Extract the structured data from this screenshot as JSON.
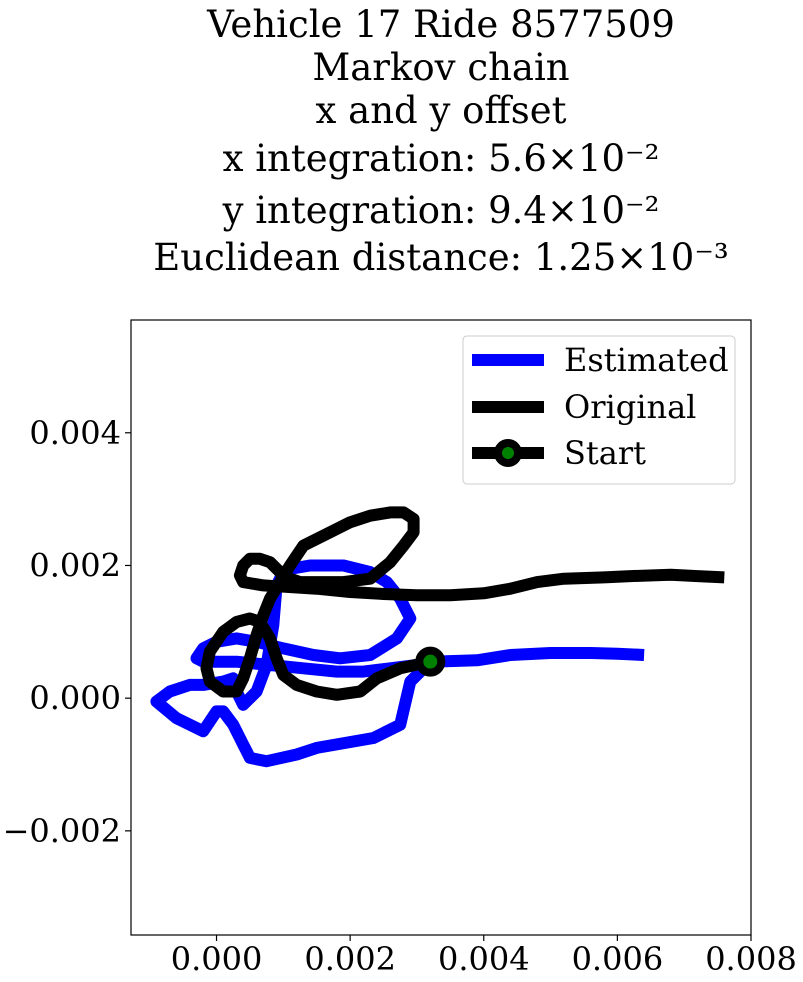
{
  "chart_data": {
    "type": "line",
    "title_lines": [
      "Vehicle 17 Ride 8577509",
      "Markov chain",
      "x and y offset",
      "x integration: 5.6×10⁻²",
      "y integration: 9.4×10⁻²",
      "Euclidean distance: 1.25×10⁻³"
    ],
    "xlabel": "",
    "ylabel": "",
    "xlim": [
      -0.00128,
      0.008
    ],
    "ylim": [
      -0.00357,
      0.0057
    ],
    "x_ticks": [
      0.0,
      0.002,
      0.004,
      0.006,
      0.008
    ],
    "x_tick_labels": [
      "0.000",
      "0.002",
      "0.004",
      "0.006",
      "0.008"
    ],
    "y_ticks": [
      -0.002,
      0.0,
      0.002,
      0.004
    ],
    "y_tick_labels": [
      "−0.002",
      "0.000",
      "0.002",
      "0.004"
    ],
    "grid": false,
    "legend_position": "top-right",
    "series": [
      {
        "name": "Estimated",
        "color": "#0000ff",
        "x": [
          0.0032,
          0.0029,
          0.00275,
          0.00235,
          0.0015,
          0.0012,
          0.00075,
          0.0005,
          0.00045,
          0.0004,
          0.00035,
          0.00025,
          0.0001,
          0.0,
          -0.0002,
          -0.0006,
          -0.0009,
          -0.0007,
          -0.0004,
          -0.0002,
          0.0001,
          0.00025,
          0.0003,
          0.0004,
          0.0006,
          0.00075,
          0.00085,
          0.0009,
          0.001,
          0.0011,
          0.0014,
          0.0019,
          0.0023,
          0.00255,
          0.00275,
          0.0029,
          0.0027,
          0.0023,
          0.00185,
          0.00145,
          0.001,
          0.0006,
          0.0003,
          0.0,
          -0.0002,
          -0.0003,
          -0.0002,
          0.0003,
          0.0008,
          0.0013,
          0.0018,
          0.0022,
          0.0026,
          0.003,
          0.0032,
          0.0039,
          0.0044,
          0.005,
          0.0056,
          0.006,
          0.0064
        ],
        "y": [
          0.00055,
          0.00025,
          -0.0004,
          -0.0006,
          -0.00075,
          -0.00085,
          -0.00095,
          -0.0009,
          -0.0008,
          -0.0007,
          -0.0006,
          -0.0004,
          -0.0002,
          -0.0002,
          -0.0005,
          -0.0003,
          -5e-05,
          0.0001,
          0.0002,
          0.0002,
          0.00025,
          0.0003,
          0.0001,
          -0.0001,
          0.0001,
          0.0005,
          0.0011,
          0.0017,
          0.0019,
          0.00195,
          0.002,
          0.002,
          0.0019,
          0.00175,
          0.0015,
          0.0012,
          0.0009,
          0.00065,
          0.0006,
          0.00065,
          0.00075,
          0.00085,
          0.0009,
          0.00085,
          0.00075,
          0.0006,
          0.00055,
          0.00055,
          0.0005,
          0.00045,
          0.0004,
          0.0004,
          0.00045,
          0.0005,
          0.00055,
          0.00057,
          0.00065,
          0.00068,
          0.00068,
          0.00067,
          0.00065
        ]
      },
      {
        "name": "Original",
        "color": "#000000",
        "x": [
          0.0032,
          0.00275,
          0.0024,
          0.00215,
          0.0018,
          0.0015,
          0.0012,
          0.001,
          0.0009,
          0.0008,
          0.00065,
          0.0005,
          0.0003,
          0.0001,
          -0.0001,
          -0.00015,
          -0.0001,
          0.0001,
          0.0003,
          0.0004,
          0.0005,
          0.0006,
          0.0007,
          0.0008,
          0.00095,
          0.0011,
          0.0013,
          0.0016,
          0.002,
          0.0023,
          0.0026,
          0.0028,
          0.00295,
          0.00295,
          0.0028,
          0.0026,
          0.0023,
          0.0019,
          0.0015,
          0.00125,
          0.0011,
          0.00095,
          0.0008,
          0.00065,
          0.0005,
          0.0004,
          0.00035,
          0.0004,
          0.0007,
          0.001,
          0.0015,
          0.002,
          0.0025,
          0.003,
          0.0035,
          0.004,
          0.0044,
          0.0048,
          0.0052,
          0.0058,
          0.0062,
          0.0068,
          0.0072,
          0.0076
        ],
        "y": [
          0.00055,
          0.00045,
          0.0003,
          0.0001,
          5e-05,
          0.0001,
          0.0002,
          0.00035,
          0.0006,
          0.0009,
          0.00115,
          0.0012,
          0.00115,
          0.001,
          0.0007,
          0.00045,
          0.00025,
          0.0001,
          0.0001,
          0.0003,
          0.0006,
          0.00095,
          0.00125,
          0.0015,
          0.00175,
          0.002,
          0.0023,
          0.00245,
          0.00265,
          0.00275,
          0.0028,
          0.0028,
          0.0027,
          0.0025,
          0.0023,
          0.00205,
          0.0018,
          0.00175,
          0.00175,
          0.00175,
          0.0018,
          0.0019,
          0.00205,
          0.0021,
          0.0021,
          0.002,
          0.00185,
          0.00175,
          0.0017,
          0.00168,
          0.00165,
          0.0016,
          0.00157,
          0.00155,
          0.00155,
          0.00158,
          0.00165,
          0.00175,
          0.0018,
          0.00182,
          0.00184,
          0.00186,
          0.00184,
          0.00182
        ]
      }
    ],
    "start_marker": {
      "name": "Start",
      "x": 0.0032,
      "y": 0.00055,
      "edge_color": "#000000",
      "face_color": "#008000"
    }
  }
}
